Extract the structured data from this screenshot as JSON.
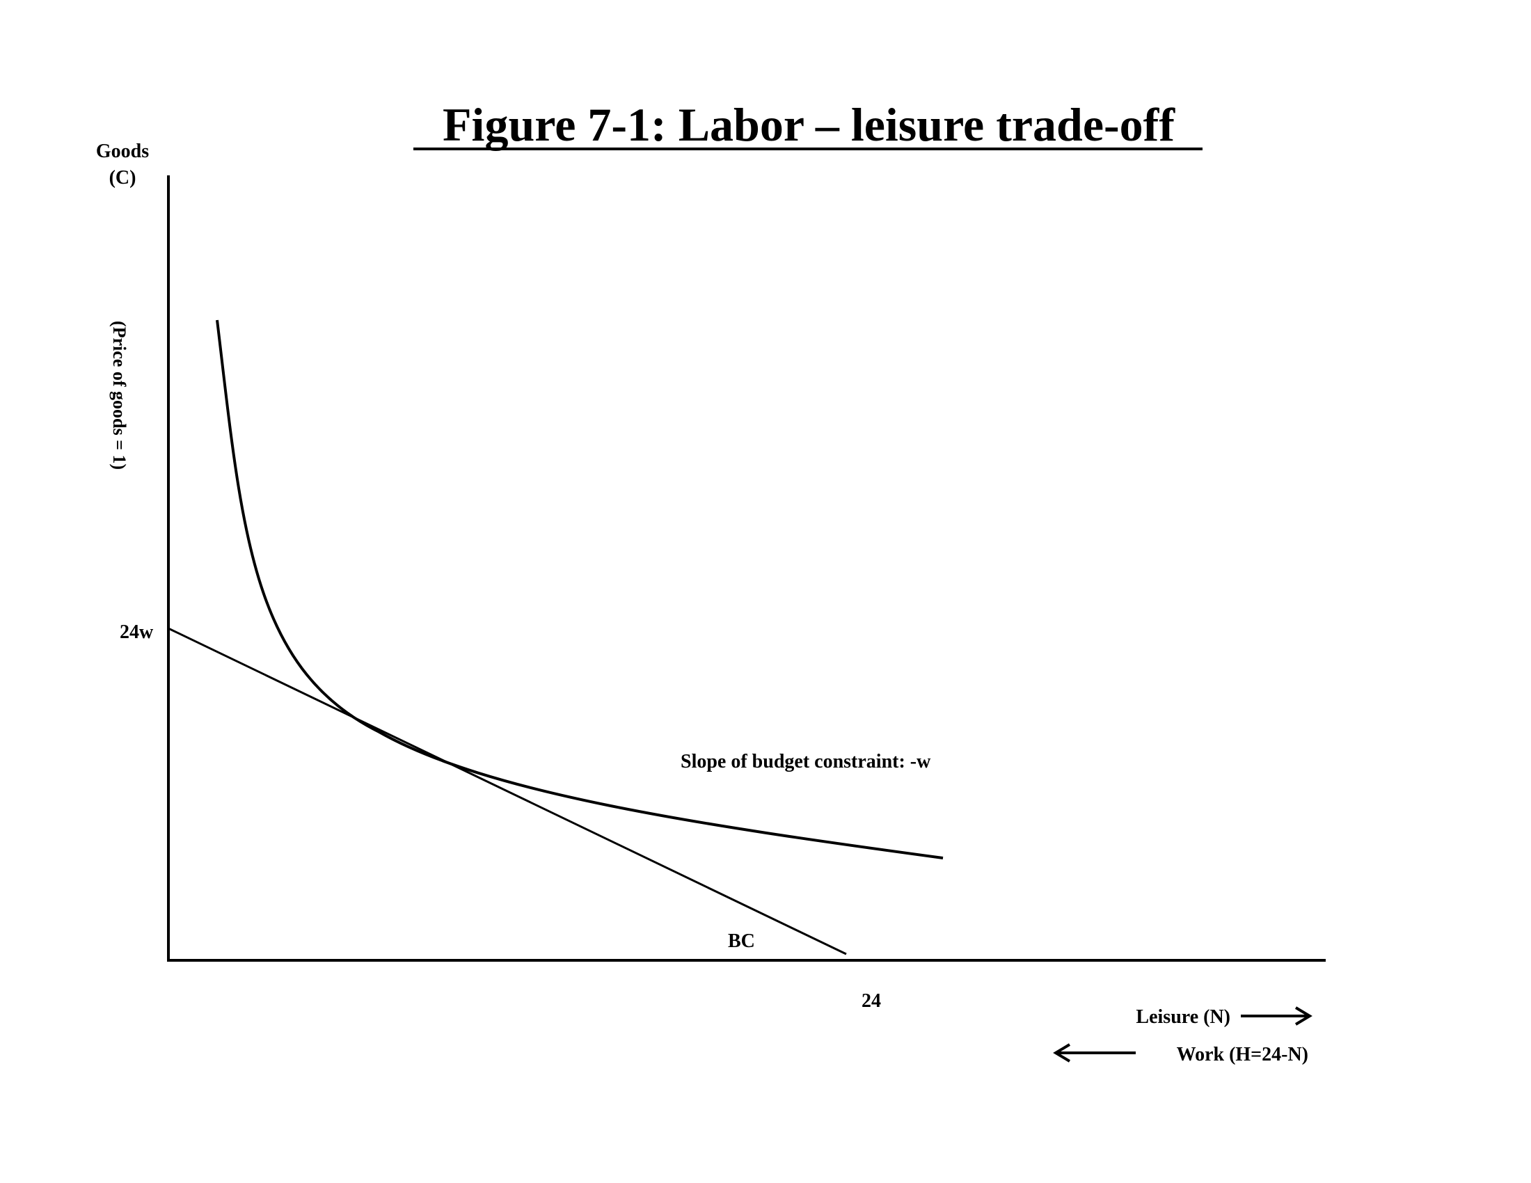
{
  "title": "Figure 7-1: Labor – leisure trade-off",
  "y_axis": {
    "label_line1": "Goods",
    "label_line2": "(C)",
    "note": "(Price of goods = 1)",
    "intercept_label": "24w"
  },
  "x_axis": {
    "intercept_label": "24",
    "leisure_label": "Leisure (N)",
    "work_label": "Work (H=24-N)"
  },
  "budget_constraint": {
    "label": "BC",
    "slope_label": "Slope of budget constraint: -w"
  },
  "colors": {
    "ink": "#000000",
    "background": "#ffffff"
  }
}
